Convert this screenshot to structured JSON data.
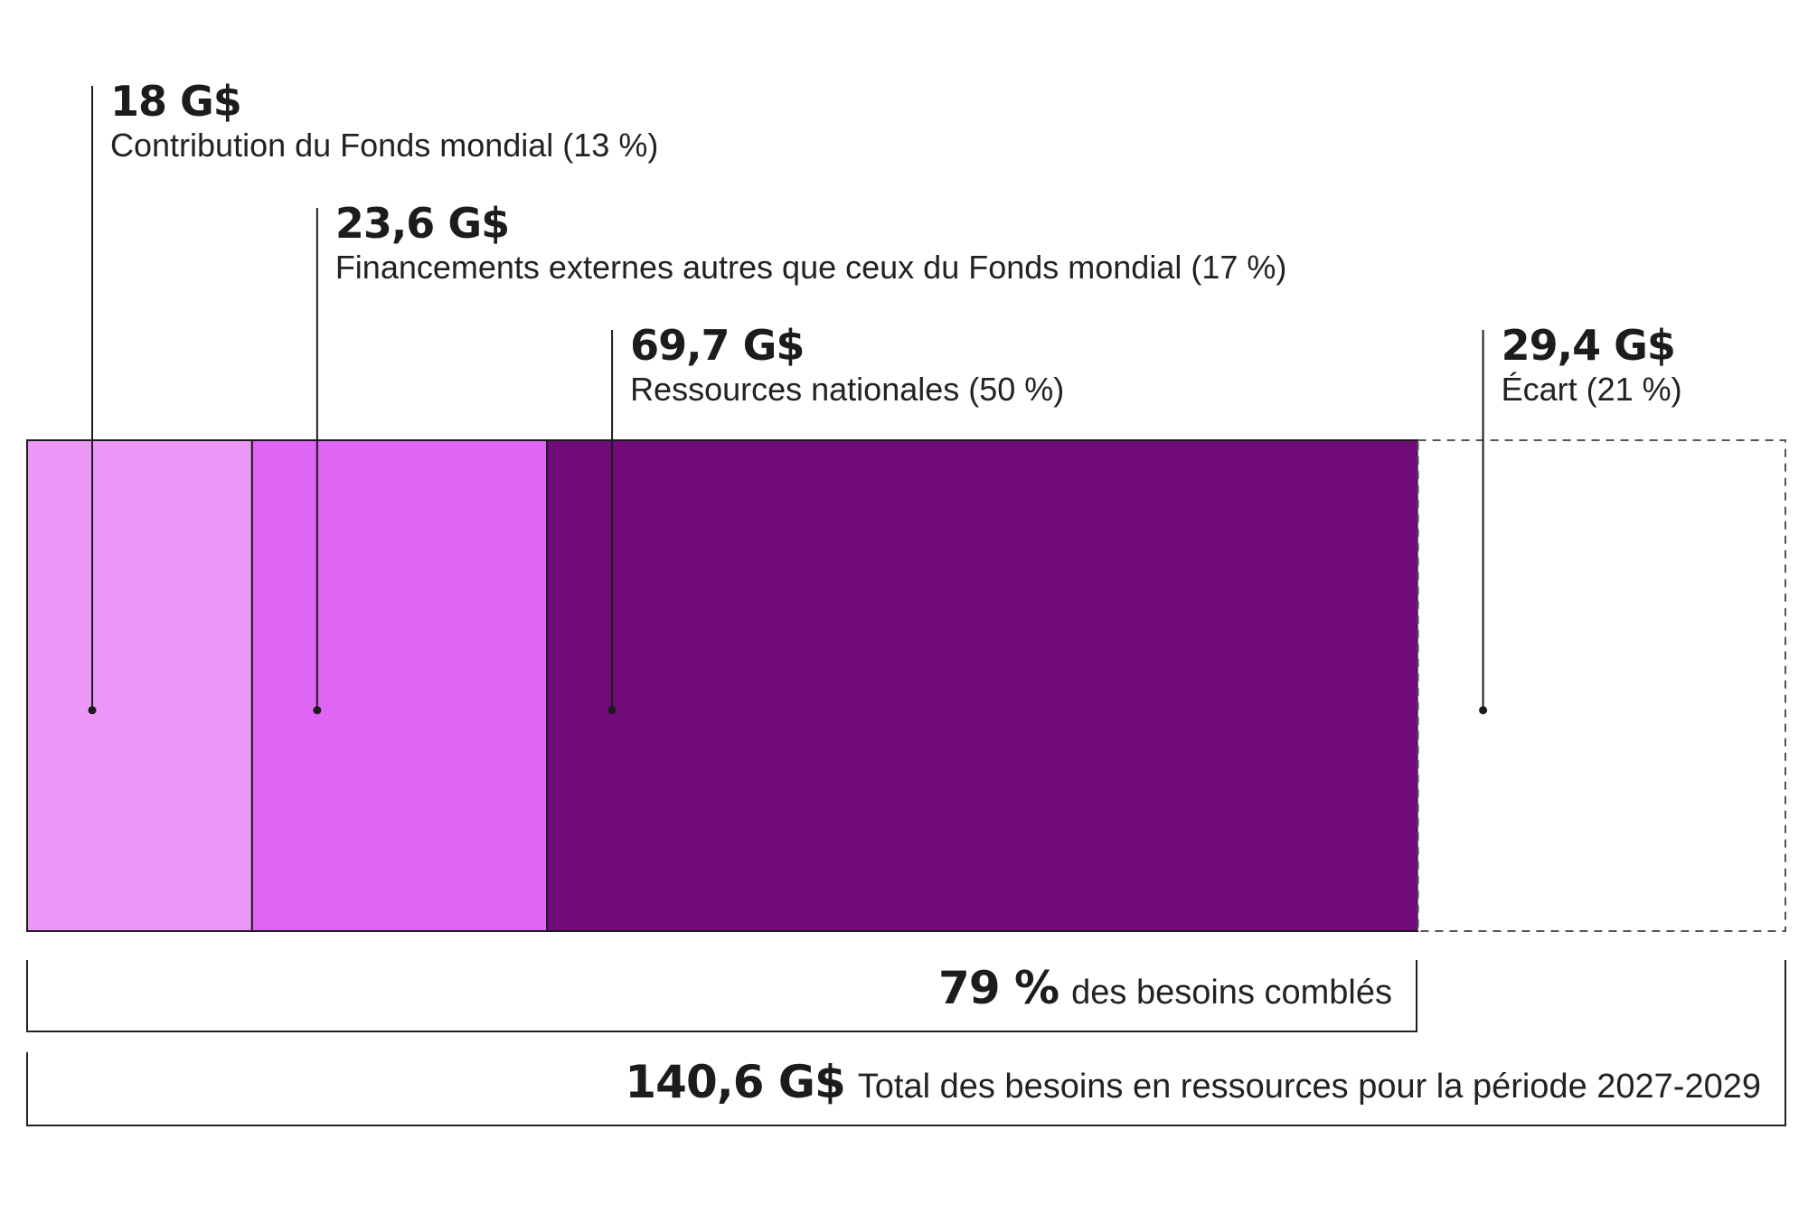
{
  "chart_data": {
    "type": "bar",
    "orientation": "horizontal-stacked",
    "unit": "G$",
    "segments": [
      {
        "value": 18,
        "value_label": "18 G$",
        "label": "Contribution du Fonds mondial (13 %)",
        "percent": 13,
        "color": "#ec97f8",
        "style": "solid"
      },
      {
        "value": 23.6,
        "value_label": "23,6 G$",
        "label": "Financements externes autres que ceux du Fonds mondial (17 %)",
        "percent": 17,
        "color": "#df66f4",
        "style": "solid"
      },
      {
        "value": 69.7,
        "value_label": "69,7 G$",
        "label": "Ressources nationales (50 %)",
        "percent": 50,
        "color": "#700b79",
        "style": "solid"
      },
      {
        "value": 29.4,
        "value_label": "29,4 G$",
        "label": "Écart (21 %)",
        "percent": 21,
        "color": "#ffffff",
        "style": "dashed"
      }
    ],
    "covered": {
      "percent": 79,
      "value_label": "79 %",
      "label": "des besoins comblés"
    },
    "total": {
      "value": 140.6,
      "value_label": "140,6 G$",
      "label": "Total des besoins en ressources pour la période 2027-2029"
    }
  }
}
